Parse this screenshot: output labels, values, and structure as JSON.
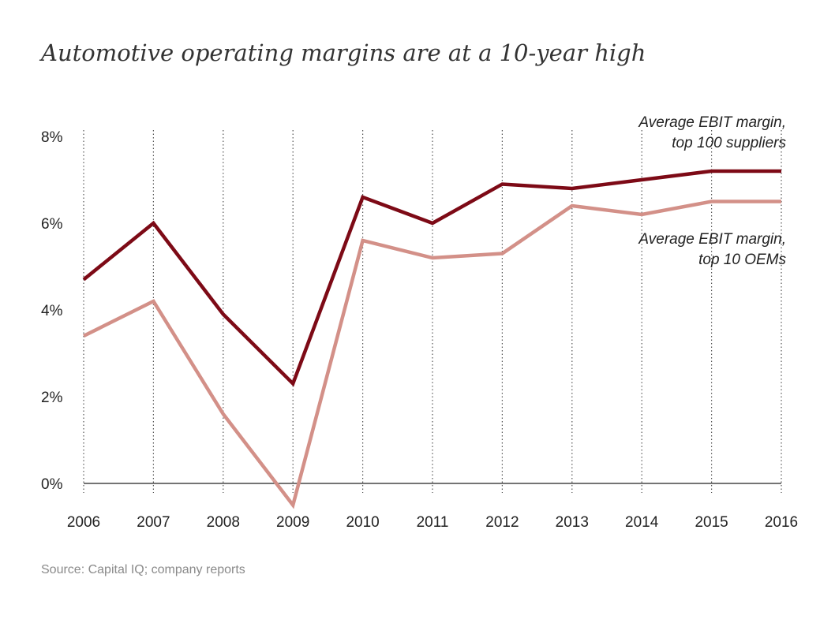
{
  "title": "Automotive operating margins are at a 10-year high",
  "source": "Source: Capital IQ; company reports",
  "colors": {
    "suppliers": "#7d0a16",
    "oems": "#d39088"
  },
  "chart_data": {
    "type": "line",
    "title": "Automotive operating margins are at a 10-year high",
    "x": [
      2006,
      2007,
      2008,
      2009,
      2010,
      2011,
      2012,
      2013,
      2014,
      2015,
      2016
    ],
    "x_tick_labels": [
      "2006",
      "2007",
      "2008",
      "2009",
      "2010",
      "2011",
      "2012",
      "2013",
      "2014",
      "2015",
      "2016"
    ],
    "ylim": [
      -0.6,
      8
    ],
    "y_ticks": [
      0,
      2,
      4,
      6,
      8
    ],
    "y_tick_labels": [
      "0%",
      "2%",
      "4%",
      "6%",
      "8%"
    ],
    "grid": "vertical dotted",
    "xlabel": "",
    "ylabel": "",
    "series": [
      {
        "name": "Average EBIT margin, top 100 suppliers",
        "label_lines": [
          "Average EBIT margin,",
          "top 100 suppliers"
        ],
        "color": "#7d0a16",
        "values": [
          4.7,
          6.0,
          3.9,
          2.3,
          6.6,
          6.0,
          6.9,
          6.8,
          7.0,
          7.2,
          7.2
        ]
      },
      {
        "name": "Average EBIT margin, top 10 OEMs",
        "label_lines": [
          "Average EBIT margin,",
          "top 10 OEMs"
        ],
        "color": "#d39088",
        "values": [
          3.4,
          4.2,
          1.6,
          -0.5,
          5.6,
          5.2,
          5.3,
          6.4,
          6.2,
          6.5,
          6.5
        ]
      }
    ]
  }
}
